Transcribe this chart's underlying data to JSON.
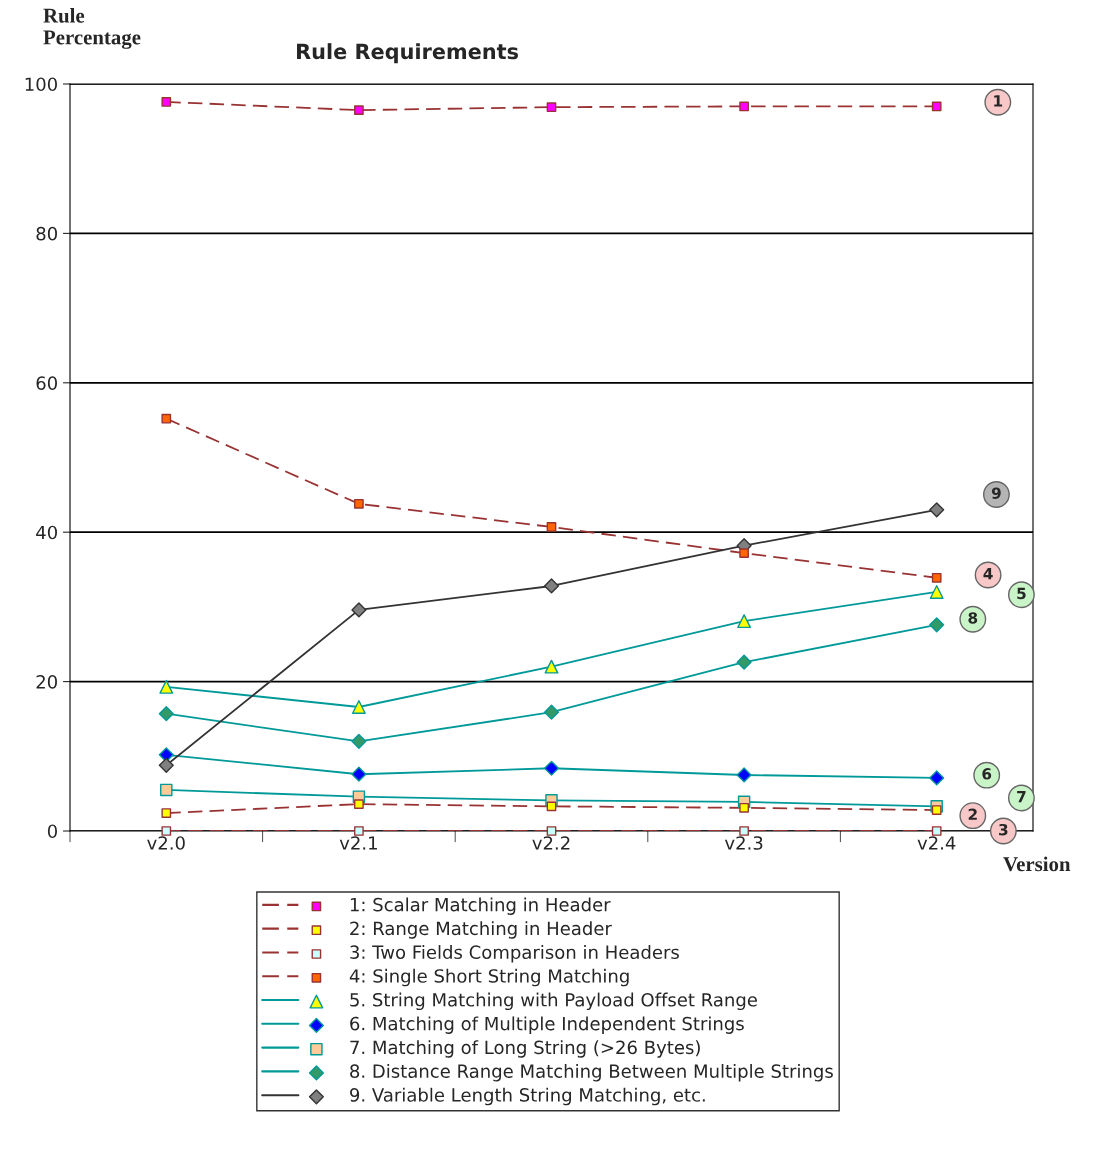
{
  "chart_data": {
    "type": "line",
    "title": "Rule Requirements",
    "ylabel": "Rule\nPercentage",
    "xlabel": "Version",
    "categories": [
      "v2.0",
      "v2.1",
      "v2.2",
      "v2.3",
      "v2.4"
    ],
    "ylim": [
      0,
      100
    ],
    "yticks": [
      0,
      20,
      40,
      60,
      80,
      100
    ],
    "grid": "y",
    "legend": "bottom",
    "series": [
      {
        "name": "1: Scalar Matching in Header",
        "color": "#993333",
        "colors": [
          "#ff00ff",
          "#ff00ff",
          "#ff00ff",
          "#ff00ff",
          "#ff00ff"
        ],
        "marker": "square",
        "line_style": "dashed",
        "values": [
          97.6,
          96.5,
          96.9,
          97.0,
          97.0
        ]
      },
      {
        "name": "2: Range Matching in Header",
        "color": "#993333",
        "colors": [
          "#ffff00",
          "#ffff00",
          "#ffff00",
          "#ffff00",
          "#ffff00"
        ],
        "marker": "square",
        "line_style": "dashed",
        "values": [
          2.4,
          3.6,
          3.3,
          3.1,
          2.8
        ]
      },
      {
        "name": "3: Two Fields Comparison in Headers",
        "color": "#993333",
        "colors": [
          "#ccffff",
          "#ccffff",
          "#ccffff",
          "#ccffff",
          "#ccffff"
        ],
        "marker": "square",
        "line_style": "dashed",
        "values": [
          0,
          0,
          0,
          0,
          0
        ]
      },
      {
        "name": "4: Single Short String Matching",
        "color": "#993333",
        "colors": [
          "#ff6600",
          "#ff6600",
          "#ff6600",
          "#ff6600",
          "#ff6600"
        ],
        "marker": "square",
        "line_style": "dashed",
        "values": [
          55.2,
          43.8,
          40.7,
          37.2,
          33.9
        ]
      },
      {
        "name": "5. String Matching with Payload Offset Range",
        "color": "#009999",
        "colors": [
          "#ffff00",
          "#ffff00",
          "#ffff00",
          "#ffff00",
          "#ffff00"
        ],
        "marker": "triangle",
        "line_style": "solid",
        "values": [
          19.3,
          16.6,
          22.0,
          28.1,
          32.0
        ]
      },
      {
        "name": "6. Matching of Multiple Independent Strings",
        "color": "#009999",
        "colors": [
          "#0000ff",
          "#0000ff",
          "#0000ff",
          "#0000ff",
          "#0000ff"
        ],
        "marker": "diamond",
        "line_style": "solid",
        "values": [
          10.2,
          7.6,
          8.4,
          7.5,
          7.1
        ]
      },
      {
        "name": "7. Matching of Long String (>26 Bytes)",
        "color": "#009999",
        "colors": [
          "#ffcc99",
          "#ffcc99",
          "#ffcc99",
          "#ffcc99",
          "#ffcc99"
        ],
        "marker": "square",
        "line_style": "solid",
        "values": [
          5.5,
          4.6,
          4.1,
          3.9,
          3.3
        ]
      },
      {
        "name": "8. Distance Range Matching Between Multiple Strings",
        "color": "#009999",
        "colors": [
          "#339966",
          "#339966",
          "#339966",
          "#339966",
          "#339966"
        ],
        "marker": "diamond",
        "line_style": "solid",
        "values": [
          15.7,
          12.0,
          15.9,
          22.6,
          27.6
        ]
      },
      {
        "name": "9. Variable Length String Matching, etc.",
        "color": "#333333",
        "colors": [
          "#808080",
          "#808080",
          "#808080",
          "#808080",
          "#808080"
        ],
        "marker": "diamond",
        "line_style": "solid",
        "values": [
          8.8,
          29.6,
          32.8,
          38.2,
          43.0
        ]
      }
    ],
    "annotations": [
      "1",
      "2",
      "3",
      "4",
      "5",
      "6",
      "7",
      "8",
      "9"
    ]
  }
}
